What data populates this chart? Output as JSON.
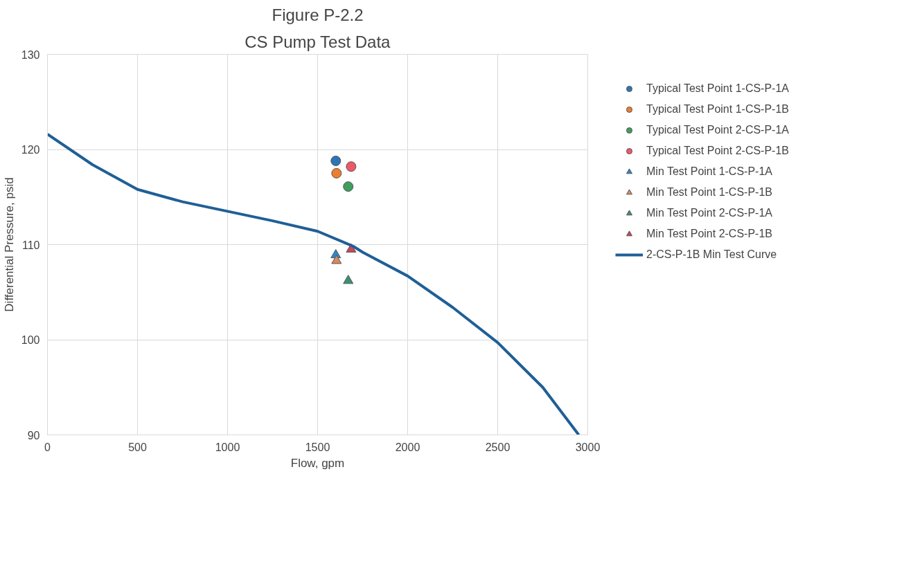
{
  "chart_data": {
    "type": "scatter",
    "title": "Figure P-2.2",
    "subtitle": "CS Pump Test Data",
    "xlabel": "Flow, gpm",
    "ylabel": "Differential Pressure, psid",
    "xlim": [
      0,
      3000
    ],
    "xticks": [
      0,
      500,
      1000,
      1500,
      2000,
      2500,
      3000
    ],
    "ylim": [
      90,
      130
    ],
    "yticks": [
      90,
      100,
      110,
      120,
      130
    ],
    "grid": true,
    "legend": "right",
    "series": [
      {
        "name": "Typical Test Point 1-CS-P-1A",
        "color": "#2e75b6",
        "marker": "circle",
        "x": [
          1601
        ],
        "values": [
          118.8
        ]
      },
      {
        "name": "Typical Test Point 1-CS-P-1B",
        "color": "#ed7d31",
        "marker": "circle",
        "x": [
          1605
        ],
        "values": [
          117.5
        ]
      },
      {
        "name": "Typical Test Point 2-CS-P-1A",
        "color": "#3f9e5c",
        "marker": "circle",
        "x": [
          1670
        ],
        "values": [
          116.1
        ]
      },
      {
        "name": "Typical Test Point 2-CS-P-1B",
        "color": "#ec5a6a",
        "marker": "circle",
        "x": [
          1686
        ],
        "values": [
          118.2
        ]
      },
      {
        "name": "Min Test Point 1-CS-P-1A",
        "color": "#2e86d0",
        "marker": "triangle",
        "x": [
          1601
        ],
        "values": [
          108.9
        ]
      },
      {
        "name": "Min Test Point 1-CS-P-1B",
        "color": "#d9895e",
        "marker": "triangle",
        "x": [
          1605
        ],
        "values": [
          108.3
        ]
      },
      {
        "name": "Min Test Point 2-CS-P-1A",
        "color": "#3a9074",
        "marker": "triangle",
        "x": [
          1670
        ],
        "values": [
          106.2
        ]
      },
      {
        "name": "Min Test Point 2-CS-P-1B",
        "color": "#c9475a",
        "marker": "triangle",
        "x": [
          1686
        ],
        "values": [
          109.5
        ]
      },
      {
        "name": "2-CS-P-1B Min Test Curve",
        "type": "line",
        "color": "#1f5f96",
        "x": [
          0,
          250,
          500,
          750,
          1000,
          1250,
          1500,
          1700,
          1750,
          2000,
          2250,
          2500,
          2750,
          2950
        ],
        "values": [
          121.6,
          118.4,
          115.8,
          114.5,
          113.5,
          112.5,
          111.4,
          109.8,
          109.2,
          106.7,
          103.4,
          99.7,
          95.0,
          90.0
        ]
      }
    ]
  }
}
